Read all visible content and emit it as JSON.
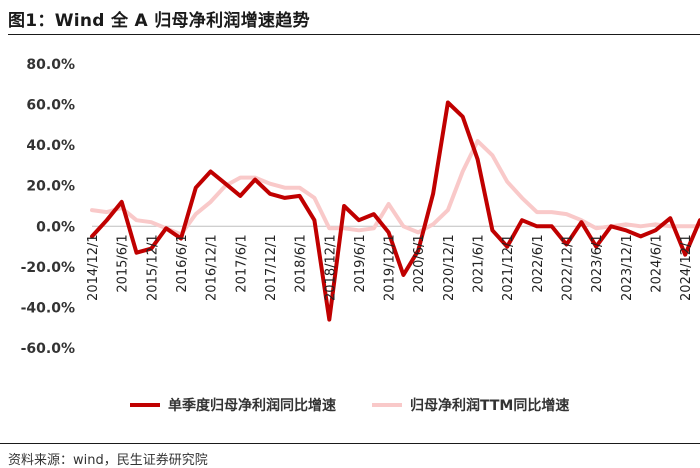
{
  "header": {
    "title": "图1：Wind 全 A 归母净利润增速趋势"
  },
  "footer": {
    "source": "资料来源：wind，民生证券研究院"
  },
  "colors": {
    "series1": "#c00000",
    "series2": "#f9c9c9"
  },
  "chart_data": {
    "type": "line",
    "title": "",
    "xlabel": "",
    "ylabel": "",
    "ylim": [
      -60,
      80
    ],
    "yticks": [
      80,
      60,
      40,
      20,
      0,
      -20,
      -40,
      -60
    ],
    "ytick_labels": [
      "80.0%",
      "60.0%",
      "40.0%",
      "20.0%",
      "0.0%",
      "-20.0%",
      "-40.0%",
      "-60.0%"
    ],
    "grid": false,
    "legend_position": "bottom",
    "x_tick_labels": [
      "2014/12/1",
      "2015/6/1",
      "2015/12/1",
      "2016/6/1",
      "2016/12/1",
      "2017/6/1",
      "2017/12/1",
      "2018/6/1",
      "2018/12/1",
      "2019/6/1",
      "2019/12/1",
      "2020/6/1",
      "2020/12/1",
      "2021/6/1",
      "2021/12/1",
      "2022/6/1",
      "2022/12/1",
      "2023/6/1",
      "2023/12/1",
      "2024/6/1",
      "2024/12/1"
    ],
    "x": [
      "2014/12",
      "2015/3",
      "2015/6",
      "2015/9",
      "2015/12",
      "2016/3",
      "2016/6",
      "2016/9",
      "2016/12",
      "2017/3",
      "2017/6",
      "2017/9",
      "2017/12",
      "2018/3",
      "2018/6",
      "2018/9",
      "2018/12",
      "2019/3",
      "2019/6",
      "2019/9",
      "2019/12",
      "2020/3",
      "2020/6",
      "2020/9",
      "2020/12",
      "2021/3",
      "2021/6",
      "2021/9",
      "2021/12",
      "2022/3",
      "2022/6",
      "2022/9",
      "2022/12",
      "2023/3",
      "2023/6",
      "2023/9",
      "2023/12",
      "2024/3",
      "2024/6",
      "2024/9",
      "2024/12",
      "2025/3"
    ],
    "series": [
      {
        "name": "单季度归母净利润同比增速",
        "values": [
          -5,
          3,
          12,
          -13,
          -11,
          -1,
          -6,
          19,
          27,
          21,
          15,
          23,
          16,
          14,
          15,
          3,
          -46,
          10,
          3,
          6,
          -3,
          -24,
          -12,
          16,
          61,
          54,
          33,
          -2,
          -10,
          3,
          0,
          0,
          -9,
          2,
          -10,
          0,
          -2,
          -5,
          -2,
          4,
          -14,
          3
        ]
      },
      {
        "name": "归母净利润TTM同比增速",
        "values": [
          8,
          7,
          9,
          3,
          2,
          -1,
          -4,
          6,
          12,
          20,
          24,
          24,
          21,
          19,
          19,
          14,
          -1,
          -1,
          -2,
          -1,
          11,
          0,
          -3,
          1,
          8,
          27,
          42,
          35,
          22,
          14,
          7,
          7,
          6,
          3,
          -1,
          0,
          1,
          0,
          1,
          0,
          0,
          0
        ]
      }
    ]
  }
}
